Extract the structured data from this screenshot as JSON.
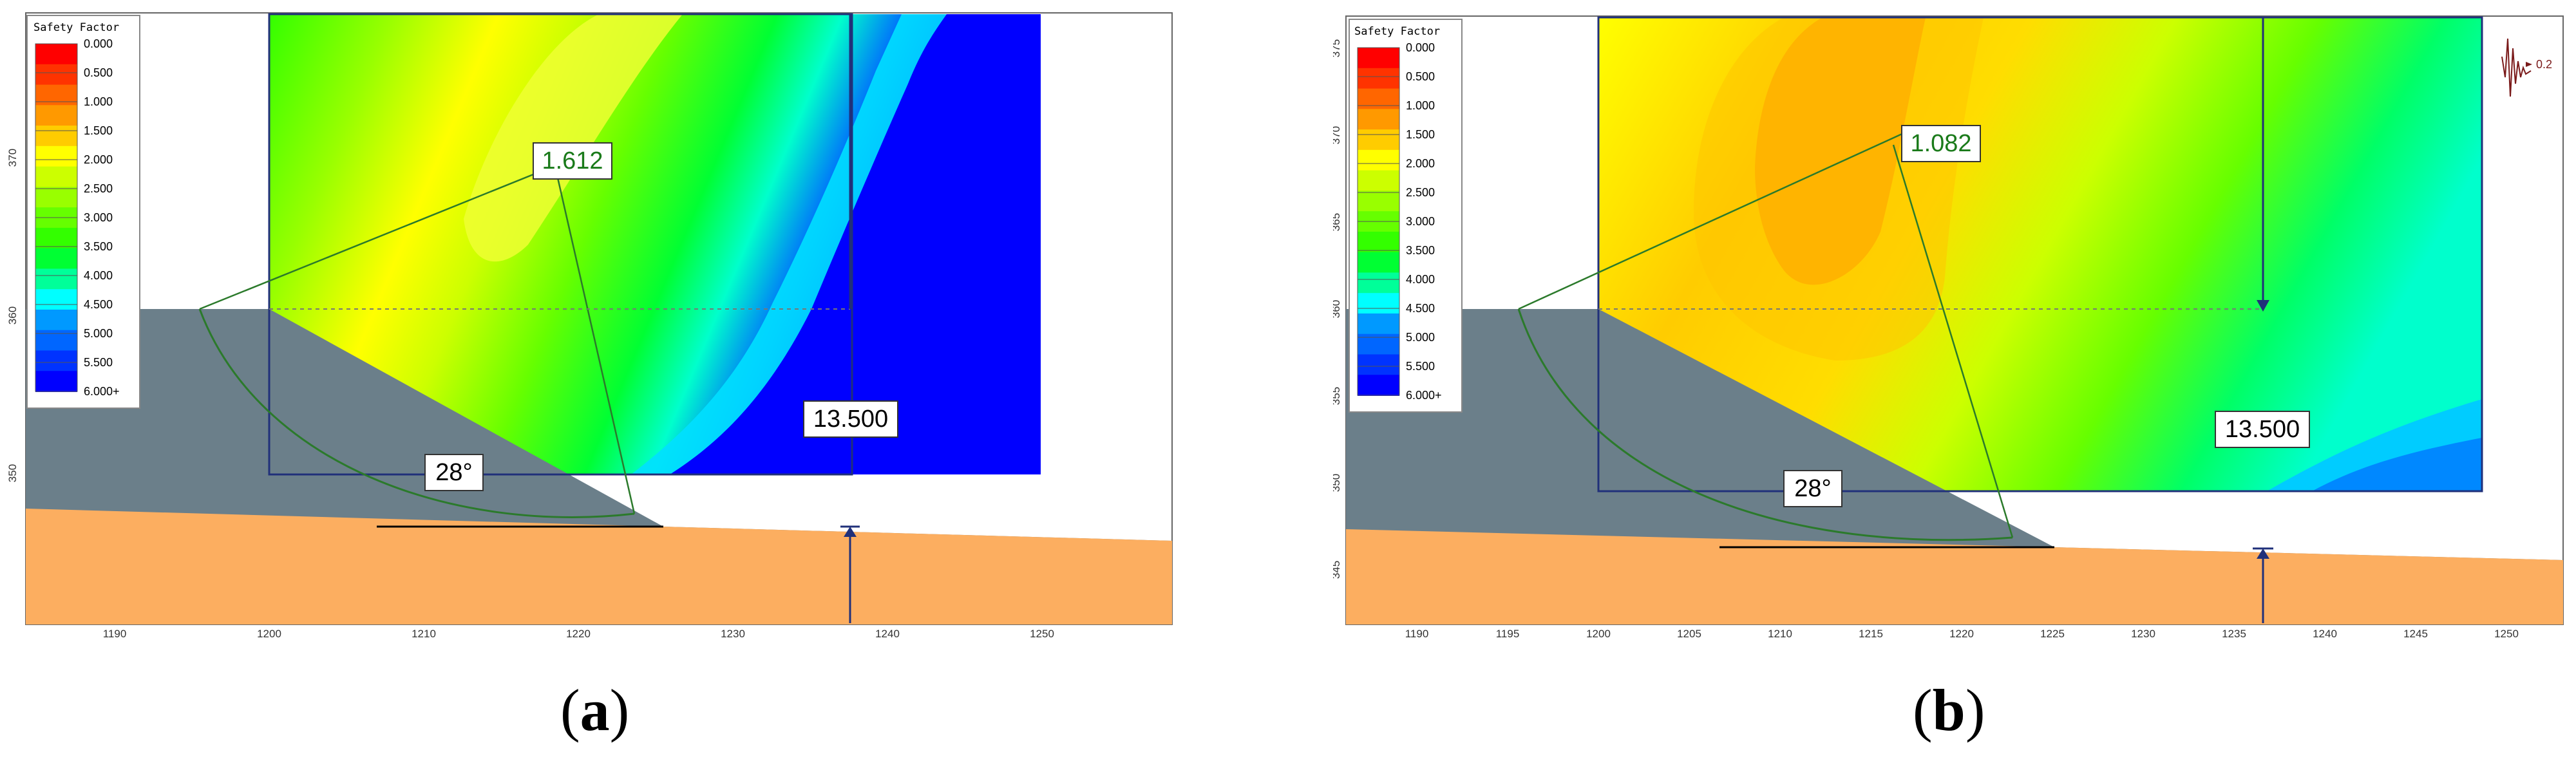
{
  "legend": {
    "title": "Safety Factor",
    "entries": [
      {
        "label": "0.000",
        "color": "#ff0000"
      },
      {
        "label": "0.500",
        "color": "#ff3300"
      },
      {
        "label": "1.000",
        "color": "#ff6600"
      },
      {
        "label": "1.500",
        "color": "#ff9900"
      },
      {
        "label": "2.000",
        "color": "#ffcc00"
      },
      {
        "label": "2.500",
        "color": "#ffff00"
      },
      {
        "label": "3.000",
        "color": "#ccff00"
      },
      {
        "label": "3.500",
        "color": "#99ff00"
      },
      {
        "label": "4.000",
        "color": "#66ff00"
      },
      {
        "label": "4.500",
        "color": "#33ff00"
      },
      {
        "label": "5.000",
        "color": "#00ff33"
      },
      {
        "label": "5.500",
        "color": "#00ff99"
      },
      {
        "label": "6.000+",
        "color": "#00ffff"
      }
    ],
    "extra_colors": [
      "#0099ff",
      "#0066ff",
      "#0033ff",
      "#0000ff"
    ]
  },
  "panels": [
    {
      "id": "a",
      "caption_letter": "a",
      "min_fs_label": "1.612",
      "max_label": "13.500",
      "angle_label": "28°",
      "y_ticks": [
        "370",
        "360",
        "350"
      ],
      "x_ticks": [
        "1190",
        "1200",
        "1210",
        "1220",
        "1230",
        "1240",
        "1250"
      ],
      "load_label": ""
    },
    {
      "id": "b",
      "caption_letter": "b",
      "min_fs_label": "1.082",
      "max_label": "13.500",
      "angle_label": "28°",
      "y_ticks": [
        "375",
        "370",
        "365",
        "360",
        "355",
        "350",
        "345"
      ],
      "x_ticks": [
        "1190",
        "1195",
        "1200",
        "1205",
        "1210",
        "1215",
        "1220",
        "1225",
        "1230",
        "1235",
        "1240",
        "1245",
        "1250"
      ],
      "load_label": "0.2"
    }
  ],
  "colors": {
    "slope_gray": "#6b7f8a",
    "soil_orange": "#fcae60",
    "contour_blue": "#0000ff",
    "label_green": "#1a7a1a"
  }
}
